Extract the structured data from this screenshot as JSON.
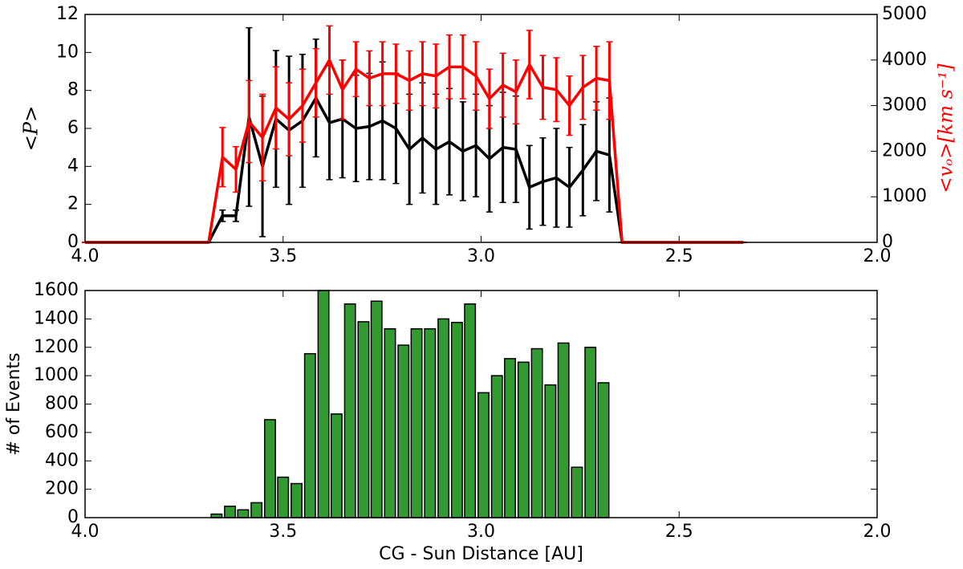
{
  "chart_data": [
    {
      "type": "line",
      "x": [
        4.0,
        3.688,
        3.653,
        3.619,
        3.586,
        3.552,
        3.518,
        3.485,
        3.451,
        3.417,
        3.383,
        3.35,
        3.316,
        3.282,
        3.249,
        3.215,
        3.181,
        3.148,
        3.114,
        3.08,
        3.046,
        3.013,
        2.979,
        2.945,
        2.912,
        2.878,
        2.844,
        2.81,
        2.777,
        2.743,
        2.709,
        2.676,
        2.644,
        2.338
      ],
      "series": [
        {
          "color": "#000000",
          "values": [
            0,
            0,
            1.4,
            1.4,
            6.6,
            4.0,
            6.5,
            5.9,
            6.4,
            7.6,
            6.3,
            6.5,
            6.0,
            6.1,
            6.4,
            6.0,
            4.9,
            5.5,
            4.9,
            5.3,
            4.8,
            5.1,
            4.4,
            5.0,
            4.9,
            2.9,
            3.2,
            3.4,
            2.9,
            3.8,
            4.8,
            4.6,
            0,
            0
          ],
          "errors": [
            0,
            0,
            0.3,
            0.3,
            4.7,
            3.7,
            3.6,
            3.9,
            3.5,
            3.1,
            3.0,
            3.1,
            2.8,
            2.8,
            3.1,
            2.9,
            2.9,
            2.9,
            2.9,
            2.8,
            2.6,
            2.7,
            2.8,
            2.9,
            2.8,
            2.2,
            2.3,
            2.6,
            2.1,
            2.4,
            2.6,
            3.0,
            0,
            0
          ]
        },
        {
          "color": "#ff0000",
          "axis": "y2",
          "values": [
            0,
            0,
            1870,
            1600,
            2650,
            2300,
            2950,
            2700,
            3000,
            3500,
            4000,
            3350,
            3800,
            3600,
            3700,
            3700,
            3550,
            3700,
            3650,
            3850,
            3850,
            3650,
            3150,
            3450,
            3300,
            3900,
            3400,
            3350,
            3000,
            3400,
            3600,
            3550,
            0,
            0
          ],
          "errors": [
            0,
            0,
            650,
            500,
            900,
            950,
            900,
            800,
            800,
            750,
            750,
            650,
            600,
            600,
            700,
            650,
            650,
            700,
            700,
            700,
            700,
            750,
            650,
            700,
            700,
            750,
            700,
            700,
            650,
            700,
            700,
            850,
            0,
            0
          ]
        }
      ],
      "xlim": [
        4.0,
        2.0
      ],
      "xticks": [
        {
          "value": 4.0,
          "label": "4.0"
        },
        3.5,
        {
          "value": 3.0,
          "label": "3.0"
        },
        2.5,
        {
          "value": 2.0,
          "label": "2.0"
        }
      ],
      "ylim": [
        0,
        12
      ],
      "yticks": [
        0,
        2,
        4,
        6,
        8,
        10,
        12
      ],
      "y2lim": [
        0,
        5000
      ],
      "y2ticks": [
        0,
        1000,
        2000,
        3000,
        4000,
        5000
      ],
      "ylabel": "<P>",
      "y2label": "<vₒ>[km s⁻¹]"
    },
    {
      "type": "bar",
      "x": [
        3.668,
        3.634,
        3.601,
        3.567,
        3.533,
        3.5,
        3.466,
        3.432,
        3.398,
        3.365,
        3.331,
        3.297,
        3.264,
        3.23,
        3.196,
        3.163,
        3.129,
        3.095,
        3.061,
        3.028,
        2.994,
        2.96,
        2.927,
        2.893,
        2.859,
        2.825,
        2.792,
        2.758,
        2.724,
        2.691
      ],
      "values": [
        25,
        80,
        55,
        105,
        690,
        285,
        240,
        1155,
        1600,
        730,
        1505,
        1380,
        1525,
        1330,
        1215,
        1330,
        1330,
        1400,
        1375,
        1505,
        880,
        1000,
        1120,
        1095,
        1190,
        935,
        1230,
        355,
        1200,
        950
      ],
      "color": "#339933",
      "xlim": [
        4.0,
        2.0
      ],
      "xticks": [
        {
          "value": 4.0,
          "label": "4.0"
        },
        3.5,
        {
          "value": 3.0,
          "label": "3.0"
        },
        2.5,
        {
          "value": 2.0,
          "label": "2.0"
        }
      ],
      "ylim": [
        0,
        1600
      ],
      "yticks": [
        0,
        200,
        400,
        600,
        800,
        1000,
        1200,
        1400,
        1600
      ],
      "xlabel": "CG - Sun Distance [AU]",
      "ylabel": "# of Events"
    }
  ]
}
